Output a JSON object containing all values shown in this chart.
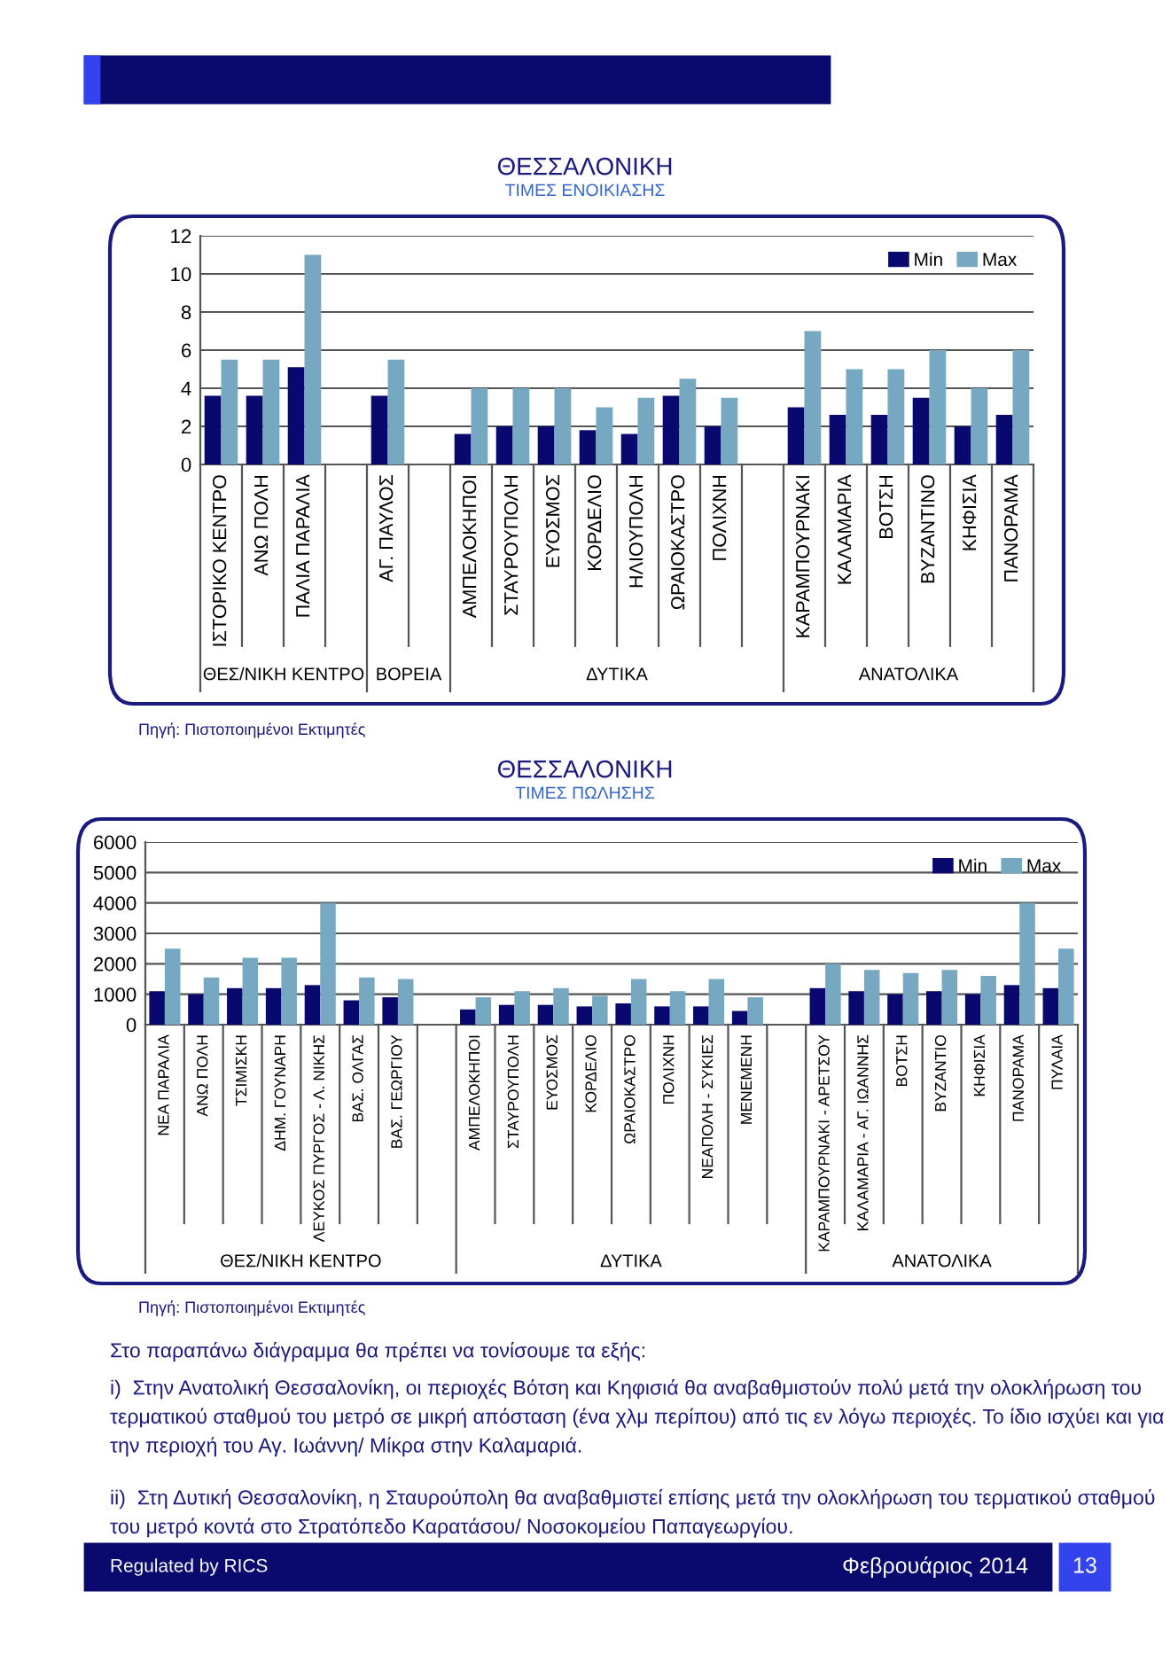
{
  "chart_data": [
    {
      "type": "bar",
      "title": "ΘΕΣΣΑΛΟΝΙΚΗ",
      "subtitle": "ΤΙΜΕΣ ΕΝΟΙΚΙΑΣΗΣ",
      "categories": [
        "ΙΣΤΟΡΙΚΟ ΚΕΝΤΡΟ",
        "ΑΝΩ ΠΟΛΗ",
        "ΠΑΛΙΑ ΠΑΡΑΛΙΑ",
        null,
        "ΑΓ. ΠΑΥΛΟΣ",
        null,
        "ΑΜΠΕΛΟΚΗΠΟΙ",
        "ΣΤΑΥΡΟΥΠΟΛΗ",
        "ΕΥΟΣΜΟΣ",
        "ΚΟΡΔΕΛΙΟ",
        "ΗΛΙΟΥΠΟΛΗ",
        "ΩΡΑΙΟΚΑΣΤΡΟ",
        "ΠΟΛΙΧΝΗ",
        null,
        "ΚΑΡΑΜΠΟΥΡΝΑΚΙ",
        "ΚΑΛΑΜΑΡΙΑ",
        "ΒΟΤΣΗ",
        "ΒΥΖΑΝΤΙΝΟ",
        "ΚΗΦΙΣΙΑ",
        "ΠΑΝΟΡΑΜΑ"
      ],
      "series": [
        {
          "name": "Min",
          "color": "#08086e",
          "values": [
            3.6,
            3.6,
            5.1,
            null,
            3.6,
            null,
            1.6,
            2,
            2,
            1.8,
            1.6,
            3.6,
            2,
            null,
            3,
            2.6,
            2.6,
            3.5,
            2,
            2.6
          ]
        },
        {
          "name": "Max",
          "color": "#77a8c2",
          "values": [
            5.5,
            5.5,
            11,
            null,
            5.5,
            null,
            4,
            4,
            4,
            3,
            3.5,
            4.5,
            3.5,
            null,
            7,
            5,
            5,
            6,
            4,
            6
          ]
        }
      ],
      "ylim": [
        0,
        12
      ],
      "yticks": [
        0,
        2,
        4,
        6,
        8,
        10,
        12
      ],
      "grid": "y",
      "legend": "top right",
      "annotations": [
        "ΘΕΣ/ΝΙΚΗ ΚΕΝΤΡΟ",
        "ΒΟΡΕΙΑ",
        "ΔΥΤΙΚΑ",
        "ΑΝΑΤΟΛΙΚΑ",
        "Πηγή: Πιστοποιημένοι Εκτιμητές"
      ]
    },
    {
      "type": "bar",
      "title": "ΘΕΣΣΑΛΟΝΙΚΗ",
      "subtitle": "ΤΙΜΕΣ ΠΩΛΗΣΗΣ",
      "categories": [
        "ΝΕΑ ΠΑΡΑΛΙΑ",
        "ΑΝΩ ΠΟΛΗ",
        "ΤΣΙΜΙΣΚΗ",
        "ΔΗΜ. ΓΟΥΝΑΡΗ",
        "ΛΕΥΚΟΣ ΠΥΡΓΟΣ - Λ. ΝΙΚΗΣ",
        "ΒΑΣ. ΟΛΓΑΣ",
        "ΒΑΣ. ΓΕΩΡΓΙΟΥ",
        null,
        "ΑΜΠΕΛΟΚΗΠΟΙ",
        "ΣΤΑΥΡΟΥΠΟΛΗ",
        "ΕΥΟΣΜΟΣ",
        "ΚΟΡΔΕΛΙΟ",
        "ΩΡΑΙΟΚΑΣΤΡΟ",
        "ΠΟΛΙΧΝΗ",
        "ΝΕΑΠΟΛΗ - ΣΥΚΙΕΣ",
        "ΜΕΝΕΜΕΝΗ",
        null,
        "ΚΑΡΑΜΠΟΥΡΝΑΚΙ - ΑΡΕΤΣΟΥ",
        "ΚΑΛΑΜΑΡΙΑ - ΑΓ. ΙΩΑΝΝΗΣ",
        "ΒΟΤΣΗ",
        "ΒΥΖΑΝΤΙΟ",
        "ΚΗΦΙΣΙΑ",
        "ΠΑΝΟΡΑΜΑ",
        "ΠΥΛΑΙΑ"
      ],
      "series": [
        {
          "name": "Min",
          "color": "#08086e",
          "values": [
            1100,
            1000,
            1200,
            1200,
            1300,
            800,
            900,
            null,
            500,
            650,
            650,
            600,
            700,
            600,
            600,
            450,
            null,
            1200,
            1100,
            1000,
            1100,
            1000,
            1300,
            1200
          ]
        },
        {
          "name": "Max",
          "color": "#77a8c2",
          "values": [
            2500,
            1550,
            2200,
            2200,
            4000,
            1550,
            1500,
            null,
            900,
            1100,
            1200,
            950,
            1500,
            1100,
            1500,
            900,
            null,
            2000,
            1800,
            1700,
            1800,
            1600,
            4000,
            2500
          ]
        }
      ],
      "ylim": [
        0,
        6000
      ],
      "yticks": [
        0,
        1000,
        2000,
        3000,
        4000,
        5000,
        6000
      ],
      "grid": "y",
      "legend": "top right",
      "annotations": [
        "ΘΕΣ/ΝΙΚΗ ΚΕΝΤΡΟ",
        "ΔΥΤΙΚΑ",
        "ΑΝΑΤΟΛΙΚΑ",
        "Πηγή: Πιστοποιημένοι Εκτιμητές",
        "Στο παραπάνω διάγραμμα θα πρέπει να τονίσουμε τα εξής:",
        "i)  Στην Ανατολική Θεσσαλονίκη, οι περιοχές Βότση και Κηφισιά θα αναβαθμιστούν πολύ μετά την ολοκλήρωση του τερματικού σταθμού του μετρό σε μικρή απόσταση (ένα χλμ περίπου) από τις εν λόγω περιοχές. Το ίδιο ισχύει και για την περιοχή του Αγ. Ιωάννη/ Μίκρα στην Καλαμαριά.",
        "ii)  Στη Δυτική Θεσσαλονίκη, η Σταυρούπολη θα αναβαθμιστεί επίσης μετά την ολοκλήρωση του τερματικού σταθμού του μετρό κοντά στο Στρατόπεδο Καρατάσου/ Νοσοκομείου Παπαγεωργίου.",
        "Regulated by RICS",
        "Φεβρουάριος 2014",
        "13"
      ]
    }
  ]
}
